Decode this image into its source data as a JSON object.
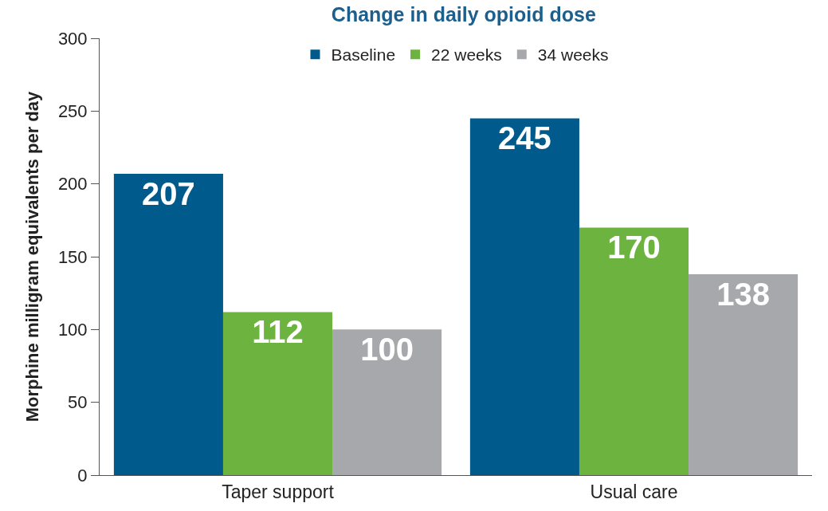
{
  "chart_data": {
    "type": "bar",
    "title": "Change in daily opioid dose",
    "ylabel": "Morphine milligram equivalents per day",
    "categories": [
      "Taper support",
      "Usual care"
    ],
    "series": [
      {
        "name": "Baseline",
        "color": "#005a8c",
        "values": [
          207,
          245
        ]
      },
      {
        "name": "22 weeks",
        "color": "#6cb33f",
        "values": [
          112,
          170
        ]
      },
      {
        "name": "34 weeks",
        "color": "#a6a8ab",
        "values": [
          100,
          138
        ]
      }
    ],
    "ylim": [
      0,
      300
    ],
    "yticks": [
      0,
      50,
      100,
      150,
      200,
      250,
      300
    ],
    "data_labels": true,
    "grid": false,
    "legend": "top"
  }
}
